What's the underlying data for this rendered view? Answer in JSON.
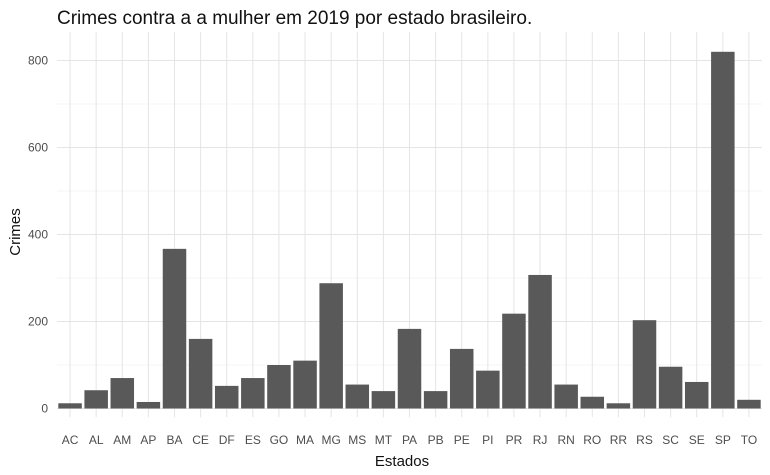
{
  "chart_data": {
    "type": "bar",
    "title": "Crimes contra a a mulher em 2019 por estado brasileiro.",
    "xlabel": "Estados",
    "ylabel": "Crimes",
    "categories": [
      "AC",
      "AL",
      "AM",
      "AP",
      "BA",
      "CE",
      "DF",
      "ES",
      "GO",
      "MA",
      "MG",
      "MS",
      "MT",
      "PA",
      "PB",
      "PE",
      "PI",
      "PR",
      "RJ",
      "RN",
      "RO",
      "RR",
      "RS",
      "SC",
      "SE",
      "SP",
      "TO"
    ],
    "values": [
      12,
      42,
      70,
      15,
      367,
      160,
      52,
      70,
      100,
      110,
      288,
      55,
      40,
      183,
      40,
      137,
      87,
      218,
      307,
      55,
      27,
      12,
      203,
      96,
      61,
      820,
      20
    ],
    "yticks": [
      0,
      200,
      400,
      600,
      800
    ],
    "ylim": [
      0,
      860
    ],
    "grid": true,
    "bar_color": "#595959"
  }
}
